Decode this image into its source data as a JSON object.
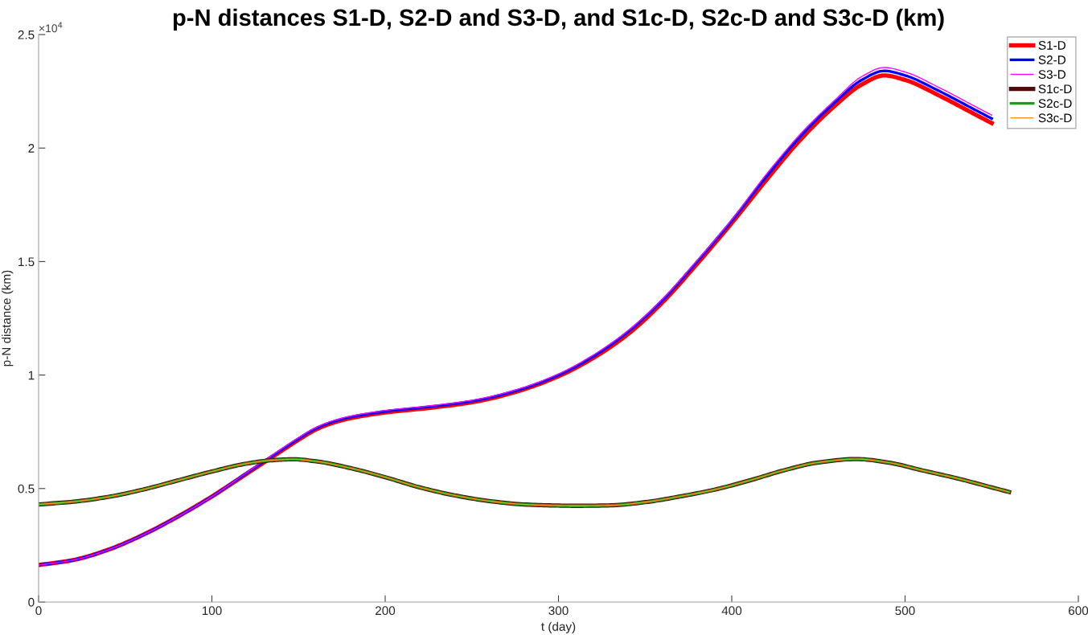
{
  "chart_data": {
    "type": "line",
    "title": "p-N distances S1-D, S2-D and S3-D, and S1c-D, S2c-D and S3c-D (km)",
    "xlabel": "t (day)",
    "ylabel": "p-N distance (km)",
    "annotations": [
      "×10$^{4}$"
    ],
    "xlim": [
      0,
      600
    ],
    "xticks": [
      0,
      100,
      200,
      300,
      400,
      500,
      600
    ],
    "ylim": [
      0,
      2.5
    ],
    "yticks": [
      0,
      0.5,
      1,
      1.5,
      2,
      2.5
    ],
    "grid": false,
    "legend": "top right",
    "marker": "none",
    "line_style": "solid",
    "series": [
      {
        "name": "S1-D",
        "color": "#ff0000",
        "x": [
          0,
          20,
          40,
          60,
          80,
          100,
          120,
          130,
          140,
          150,
          160,
          170,
          180,
          200,
          225,
          250,
          275,
          300,
          320,
          340,
          360,
          380,
          400,
          420,
          440,
          460,
          475,
          488,
          500,
          520,
          540,
          550
        ],
        "values": [
          0.163,
          0.185,
          0.23,
          0.295,
          0.375,
          0.465,
          0.565,
          0.615,
          0.665,
          0.715,
          0.76,
          0.79,
          0.81,
          0.835,
          0.855,
          0.88,
          0.925,
          0.995,
          1.075,
          1.18,
          1.32,
          1.49,
          1.67,
          1.86,
          2.04,
          2.19,
          2.28,
          2.32,
          2.3,
          2.23,
          2.15,
          2.11
        ]
      },
      {
        "name": "S2-D",
        "color": "#0000ff",
        "x": [
          0,
          20,
          40,
          60,
          80,
          100,
          120,
          130,
          140,
          150,
          160,
          170,
          180,
          200,
          225,
          250,
          275,
          300,
          320,
          340,
          360,
          380,
          400,
          420,
          440,
          460,
          475,
          488,
          500,
          520,
          540,
          550
        ],
        "values": [
          0.163,
          0.185,
          0.23,
          0.295,
          0.375,
          0.465,
          0.568,
          0.619,
          0.67,
          0.72,
          0.765,
          0.795,
          0.815,
          0.84,
          0.86,
          0.885,
          0.93,
          1.0,
          1.082,
          1.19,
          1.33,
          1.5,
          1.68,
          1.875,
          2.055,
          2.205,
          2.3,
          2.34,
          2.32,
          2.25,
          2.17,
          2.13
        ]
      },
      {
        "name": "S3-D",
        "color": "#ff00ff",
        "x": [
          0,
          20,
          40,
          60,
          80,
          100,
          120,
          130,
          140,
          150,
          160,
          170,
          180,
          200,
          225,
          250,
          275,
          300,
          320,
          340,
          360,
          380,
          400,
          420,
          440,
          460,
          475,
          488,
          500,
          520,
          540,
          550
        ],
        "values": [
          0.163,
          0.185,
          0.23,
          0.295,
          0.375,
          0.465,
          0.57,
          0.622,
          0.674,
          0.724,
          0.769,
          0.799,
          0.819,
          0.844,
          0.864,
          0.889,
          0.934,
          1.005,
          1.088,
          1.195,
          1.335,
          1.505,
          1.685,
          1.885,
          2.065,
          2.215,
          2.315,
          2.355,
          2.335,
          2.265,
          2.185,
          2.145
        ]
      },
      {
        "name": "S1c-D",
        "color": "#4d0d0d",
        "x": [
          0,
          20,
          40,
          60,
          80,
          100,
          120,
          135,
          147,
          160,
          180,
          200,
          220,
          240,
          260,
          280,
          300,
          310,
          330,
          350,
          370,
          390,
          410,
          430,
          450,
          472,
          490,
          510,
          530,
          550,
          560
        ],
        "values": [
          0.43,
          0.442,
          0.463,
          0.495,
          0.535,
          0.575,
          0.61,
          0.625,
          0.629,
          0.62,
          0.59,
          0.55,
          0.505,
          0.47,
          0.445,
          0.43,
          0.425,
          0.424,
          0.426,
          0.44,
          0.465,
          0.495,
          0.535,
          0.58,
          0.615,
          0.63,
          0.615,
          0.58,
          0.545,
          0.505,
          0.485
        ]
      },
      {
        "name": "S2c-D",
        "color": "#1a9e1a",
        "x": [
          0,
          20,
          40,
          60,
          80,
          100,
          120,
          135,
          147,
          160,
          180,
          200,
          220,
          240,
          260,
          280,
          300,
          310,
          330,
          350,
          370,
          390,
          410,
          430,
          450,
          472,
          490,
          510,
          530,
          550,
          560
        ],
        "values": [
          0.43,
          0.442,
          0.463,
          0.495,
          0.535,
          0.575,
          0.61,
          0.625,
          0.629,
          0.62,
          0.59,
          0.55,
          0.505,
          0.47,
          0.445,
          0.43,
          0.425,
          0.424,
          0.426,
          0.44,
          0.465,
          0.495,
          0.535,
          0.58,
          0.615,
          0.63,
          0.615,
          0.58,
          0.545,
          0.505,
          0.485
        ]
      },
      {
        "name": "S3c-D",
        "color": "#ff8c1a",
        "x": [
          0,
          20,
          40,
          60,
          80,
          100,
          120,
          135,
          147,
          160,
          180,
          200,
          220,
          240,
          260,
          280,
          300,
          310,
          330,
          350,
          370,
          390,
          410,
          430,
          450,
          472,
          490,
          510,
          530,
          550,
          560
        ],
        "values": [
          0.43,
          0.442,
          0.463,
          0.495,
          0.535,
          0.575,
          0.61,
          0.625,
          0.629,
          0.62,
          0.59,
          0.55,
          0.505,
          0.47,
          0.445,
          0.43,
          0.425,
          0.424,
          0.426,
          0.44,
          0.465,
          0.495,
          0.535,
          0.58,
          0.615,
          0.63,
          0.615,
          0.58,
          0.545,
          0.505,
          0.485
        ]
      }
    ]
  }
}
